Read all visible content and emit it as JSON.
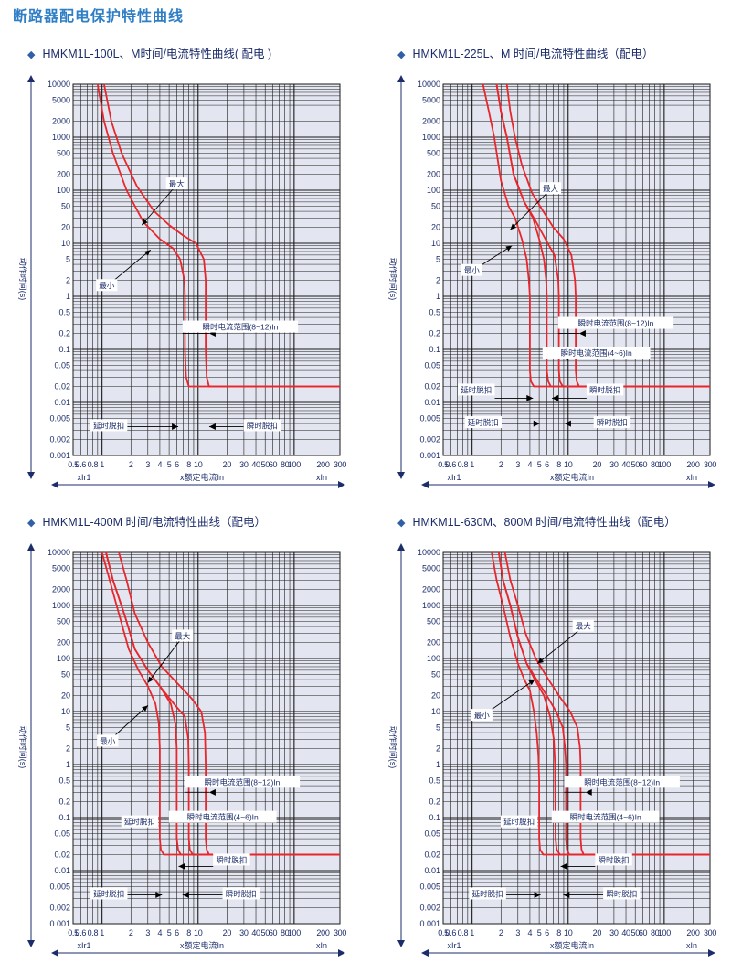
{
  "page_title": "断路器配电保护特性曲线",
  "panels": [
    {
      "heading": "HMKM1L-100L、M时间/电流特性曲线( 配电 )",
      "x_axis": {
        "ticks": [
          "0.5",
          "0.6",
          "0.8",
          "1",
          "2",
          "3",
          "4",
          "5",
          "6",
          "8",
          "10",
          "20",
          "30",
          "40",
          "50",
          "60",
          "80",
          "100",
          "200",
          "300"
        ],
        "label_left": "xIr1",
        "label_center": "x额定电流In",
        "label_right": "xIn"
      },
      "y_axis": {
        "label": "动作时间(s)",
        "ticks": [
          "10000",
          "5000",
          "2000",
          "1000",
          "500",
          "200",
          "100",
          "50",
          "20",
          "10",
          "5",
          "2",
          "1",
          "0.5",
          "0.2",
          "0.1",
          "0.05",
          "0.02",
          "0.01",
          "0.005",
          "0.002",
          "0.001"
        ]
      },
      "annotations": {
        "max": "最大",
        "min": "最小",
        "instant_range": "瞬时电流范围(8~12)In",
        "delay_trip": "延时脱扣",
        "instant_trip": "瞬时脱扣"
      }
    },
    {
      "heading": "HMKM1L-225L、M 时间/电流特性曲线（配电）",
      "x_axis": {
        "ticks": [
          "0.5",
          "0.6",
          "0.8",
          "1",
          "2",
          "3",
          "4",
          "5",
          "6",
          "8",
          "10",
          "20",
          "30",
          "40",
          "50",
          "60",
          "80",
          "100",
          "200",
          "300"
        ],
        "label_left": "xIr1",
        "label_center": "x额定电流In",
        "label_right": "xIn"
      },
      "y_axis": {
        "label": "动作时间(s)",
        "ticks": [
          "10000",
          "5000",
          "2000",
          "1000",
          "500",
          "200",
          "100",
          "50",
          "20",
          "10",
          "5",
          "2",
          "1",
          "0.5",
          "0.2",
          "0.1",
          "0.05",
          "0.02",
          "0.01",
          "0.005",
          "0.002",
          "0.001"
        ]
      },
      "annotations": {
        "max": "最大",
        "min": "最小",
        "instant_range_high": "瞬时电流范围(8~12)In",
        "instant_range_low": "瞬时电流范围(4~6)In",
        "delay_trip_1": "延时脱扣",
        "instant_trip_1": "瞬时脱扣",
        "delay_trip_2": "延时脱扣",
        "instant_trip_2": "瞬时脱扣"
      }
    },
    {
      "heading": "HMKM1L-400M 时间/电流特性曲线（配电）",
      "x_axis": {
        "ticks": [
          "0.5",
          "0.6",
          "0.8",
          "1",
          "2",
          "3",
          "4",
          "5",
          "6",
          "8",
          "10",
          "20",
          "30",
          "40",
          "50",
          "60",
          "80",
          "100",
          "200",
          "300"
        ],
        "label_left": "xIr1",
        "label_center": "x额定电流In",
        "label_right": "xIn"
      },
      "y_axis": {
        "label": "动作时间(s)",
        "ticks": [
          "10000",
          "5000",
          "2000",
          "1000",
          "500",
          "200",
          "100",
          "50",
          "20",
          "10",
          "5",
          "2",
          "1",
          "0.5",
          "0.2",
          "0.1",
          "0.05",
          "0.02",
          "0.01",
          "0.005",
          "0.002",
          "0.001"
        ]
      },
      "annotations": {
        "max": "最大",
        "min": "最小",
        "instant_range_high": "瞬时电流范围(8~12)In",
        "instant_range_low": "瞬时电流范围(4~6)In",
        "delay_trip_1": "延时脱扣",
        "instant_trip_1": "瞬时脱扣",
        "delay_trip_2": "延时脱扣",
        "instant_trip_2": "瞬时脱扣"
      }
    },
    {
      "heading": "HMKM1L-630M、800M 时间/电流特性曲线（配电）",
      "x_axis": {
        "ticks": [
          "0.5",
          "0.6",
          "0.8",
          "1",
          "2",
          "3",
          "4",
          "5",
          "6",
          "8",
          "10",
          "20",
          "30",
          "40",
          "50",
          "60",
          "80",
          "100",
          "200",
          "300"
        ],
        "label_left": "xIr1",
        "label_center": "x额定电流In",
        "label_right": "xIn"
      },
      "y_axis": {
        "label": "动作时间(s)",
        "ticks": [
          "10000",
          "5000",
          "2000",
          "1000",
          "500",
          "200",
          "100",
          "50",
          "20",
          "10",
          "5",
          "2",
          "1",
          "0.5",
          "0.2",
          "0.1",
          "0.05",
          "0.02",
          "0.01",
          "0.005",
          "0.002",
          "0.001"
        ]
      },
      "annotations": {
        "max": "最大",
        "min": "最小",
        "instant_range_high": "瞬时电流范围(8~12)In",
        "instant_range_low": "瞬时电流范围(4~6)In",
        "delay_trip_1": "延时脱扣",
        "instant_trip_1": "瞬时脱扣",
        "delay_trip_2": "延时脱扣",
        "instant_trip_2": "瞬时脱扣"
      }
    }
  ],
  "colors": {
    "curve": "#e8262c",
    "grid": "#1a1a1a",
    "plot_bg": "#e3e6f0",
    "text": "#1c2d6b",
    "title": "#2f7fc6"
  },
  "chart_data": [
    {
      "type": "line",
      "x_scale": "log",
      "y_scale": "log",
      "xlim": [
        0.5,
        300
      ],
      "ylim": [
        0.001,
        10000
      ],
      "grid": true,
      "series": [
        {
          "values": [
            [
              0.9,
              10000
            ],
            [
              1.05,
              2000
            ],
            [
              1.3,
              500
            ],
            [
              1.8,
              100
            ],
            [
              2.7,
              25
            ],
            [
              4,
              12
            ],
            [
              5.5,
              8
            ],
            [
              6.5,
              5
            ],
            [
              7.2,
              2
            ],
            [
              7.3,
              1
            ],
            [
              7.3,
              0.1
            ],
            [
              7.5,
              0.03
            ],
            [
              8,
              0.02
            ],
            [
              300,
              0.02
            ]
          ]
        },
        {
          "values": [
            [
              1.05,
              10000
            ],
            [
              1.25,
              2000
            ],
            [
              1.6,
              500
            ],
            [
              2.3,
              120
            ],
            [
              3.5,
              40
            ],
            [
              5,
              22
            ],
            [
              7,
              14
            ],
            [
              9.5,
              10
            ],
            [
              11.5,
              5
            ],
            [
              12,
              2
            ],
            [
              12,
              0.1
            ],
            [
              12.3,
              0.03
            ],
            [
              13,
              0.02
            ],
            [
              300,
              0.02
            ]
          ]
        }
      ]
    },
    {
      "type": "line",
      "x_scale": "log",
      "y_scale": "log",
      "xlim": [
        0.5,
        300
      ],
      "ylim": [
        0.001,
        10000
      ],
      "grid": true,
      "series": [
        {
          "values": [
            [
              1.3,
              10000
            ],
            [
              1.5,
              3000
            ],
            [
              1.7,
              1000
            ],
            [
              2,
              150
            ],
            [
              2.4,
              50
            ],
            [
              2.8,
              30
            ],
            [
              3.3,
              12
            ],
            [
              3.7,
              5
            ],
            [
              3.9,
              2
            ],
            [
              4,
              1
            ],
            [
              4,
              0.04
            ],
            [
              4.1,
              0.025
            ],
            [
              4.4,
              0.02
            ],
            [
              300,
              0.02
            ]
          ]
        },
        {
          "values": [
            [
              1.8,
              10000
            ],
            [
              2,
              3000
            ],
            [
              2.3,
              1000
            ],
            [
              2.7,
              200
            ],
            [
              3.5,
              60
            ],
            [
              4.3,
              30
            ],
            [
              5,
              12
            ],
            [
              5.6,
              5
            ],
            [
              5.9,
              2
            ],
            [
              6,
              1
            ],
            [
              6,
              0.04
            ],
            [
              6.2,
              0.025
            ],
            [
              6.6,
              0.02
            ],
            [
              300,
              0.02
            ]
          ]
        },
        {
          "values": [
            [
              1.8,
              10000
            ],
            [
              2,
              3000
            ],
            [
              2.3,
              1000
            ],
            [
              2.7,
              200
            ],
            [
              3.5,
              60
            ],
            [
              4.5,
              28
            ],
            [
              5.8,
              12
            ],
            [
              7.2,
              6
            ],
            [
              7.9,
              2
            ],
            [
              8,
              1
            ],
            [
              8,
              0.04
            ],
            [
              8.2,
              0.025
            ],
            [
              8.8,
              0.02
            ],
            [
              300,
              0.02
            ]
          ]
        },
        {
          "values": [
            [
              2.3,
              10000
            ],
            [
              2.5,
              3000
            ],
            [
              2.8,
              1000
            ],
            [
              3.3,
              300
            ],
            [
              4.2,
              90
            ],
            [
              5.5,
              40
            ],
            [
              7,
              20
            ],
            [
              9,
              12
            ],
            [
              10.8,
              6
            ],
            [
              11.8,
              2
            ],
            [
              12,
              1
            ],
            [
              12,
              0.04
            ],
            [
              12.3,
              0.025
            ],
            [
              13,
              0.02
            ],
            [
              300,
              0.02
            ]
          ]
        }
      ]
    },
    {
      "type": "line",
      "x_scale": "log",
      "y_scale": "log",
      "xlim": [
        0.5,
        300
      ],
      "ylim": [
        0.001,
        10000
      ],
      "grid": true,
      "series": [
        {
          "values": [
            [
              1,
              10000
            ],
            [
              1.2,
              3000
            ],
            [
              1.5,
              700
            ],
            [
              1.9,
              150
            ],
            [
              2.4,
              60
            ],
            [
              3,
              30
            ],
            [
              3.6,
              14
            ],
            [
              3.9,
              6
            ],
            [
              4,
              2
            ],
            [
              4,
              0.04
            ],
            [
              4.1,
              0.025
            ],
            [
              4.4,
              0.02
            ],
            [
              300,
              0.02
            ]
          ]
        },
        {
          "values": [
            [
              1.1,
              10000
            ],
            [
              1.3,
              3000
            ],
            [
              1.7,
              700
            ],
            [
              2.2,
              150
            ],
            [
              3,
              60
            ],
            [
              4,
              30
            ],
            [
              5.2,
              14
            ],
            [
              5.8,
              6
            ],
            [
              6,
              2
            ],
            [
              6,
              0.04
            ],
            [
              6.2,
              0.025
            ],
            [
              6.6,
              0.02
            ],
            [
              300,
              0.02
            ]
          ]
        },
        {
          "values": [
            [
              1.1,
              10000
            ],
            [
              1.3,
              3000
            ],
            [
              1.7,
              700
            ],
            [
              2.2,
              150
            ],
            [
              3,
              60
            ],
            [
              4,
              30
            ],
            [
              5.6,
              14
            ],
            [
              7.3,
              8
            ],
            [
              7.9,
              3
            ],
            [
              8,
              1
            ],
            [
              8,
              0.04
            ],
            [
              8.2,
              0.025
            ],
            [
              8.8,
              0.02
            ],
            [
              300,
              0.02
            ]
          ]
        },
        {
          "values": [
            [
              1.5,
              10000
            ],
            [
              1.8,
              3000
            ],
            [
              2.2,
              700
            ],
            [
              3,
              200
            ],
            [
              4.2,
              70
            ],
            [
              6,
              35
            ],
            [
              8.5,
              18
            ],
            [
              10.8,
              10
            ],
            [
              11.8,
              4
            ],
            [
              12,
              1
            ],
            [
              12,
              0.04
            ],
            [
              12.3,
              0.025
            ],
            [
              13,
              0.02
            ],
            [
              300,
              0.02
            ]
          ]
        }
      ]
    },
    {
      "type": "line",
      "x_scale": "log",
      "y_scale": "log",
      "xlim": [
        0.5,
        300
      ],
      "ylim": [
        0.001,
        10000
      ],
      "grid": true,
      "series": [
        {
          "values": [
            [
              1.6,
              10000
            ],
            [
              1.8,
              3000
            ],
            [
              2.1,
              1000
            ],
            [
              2.5,
              250
            ],
            [
              3,
              80
            ],
            [
              3.5,
              40
            ],
            [
              4,
              25
            ],
            [
              4.4,
              10
            ],
            [
              4.7,
              4
            ],
            [
              4.9,
              1.5
            ],
            [
              5,
              0.5
            ],
            [
              5,
              0.04
            ],
            [
              5.1,
              0.025
            ],
            [
              5.5,
              0.02
            ],
            [
              300,
              0.02
            ]
          ]
        },
        {
          "values": [
            [
              1.9,
              10000
            ],
            [
              2.1,
              3000
            ],
            [
              2.5,
              1000
            ],
            [
              3,
              250
            ],
            [
              3.7,
              80
            ],
            [
              4.5,
              40
            ],
            [
              5.6,
              20
            ],
            [
              6.5,
              8
            ],
            [
              7.1,
              3
            ],
            [
              7.3,
              1
            ],
            [
              7.4,
              0.04
            ],
            [
              7.6,
              0.025
            ],
            [
              8.2,
              0.02
            ],
            [
              300,
              0.02
            ]
          ]
        },
        {
          "values": [
            [
              1.9,
              10000
            ],
            [
              2.1,
              3000
            ],
            [
              2.5,
              1000
            ],
            [
              3,
              250
            ],
            [
              3.7,
              80
            ],
            [
              4.7,
              40
            ],
            [
              6,
              20
            ],
            [
              7.5,
              10
            ],
            [
              8.8,
              5
            ],
            [
              9.3,
              2
            ],
            [
              9.5,
              1
            ],
            [
              9.5,
              0.04
            ],
            [
              9.7,
              0.025
            ],
            [
              10.3,
              0.02
            ],
            [
              300,
              0.02
            ]
          ]
        },
        {
          "values": [
            [
              2.2,
              10000
            ],
            [
              2.5,
              3000
            ],
            [
              3,
              1000
            ],
            [
              3.6,
              300
            ],
            [
              4.6,
              100
            ],
            [
              6,
              45
            ],
            [
              8,
              20
            ],
            [
              10.5,
              10
            ],
            [
              12.5,
              5
            ],
            [
              13.3,
              2
            ],
            [
              13.5,
              1
            ],
            [
              13.5,
              0.04
            ],
            [
              13.8,
              0.025
            ],
            [
              14.5,
              0.02
            ],
            [
              300,
              0.02
            ]
          ]
        }
      ]
    }
  ]
}
